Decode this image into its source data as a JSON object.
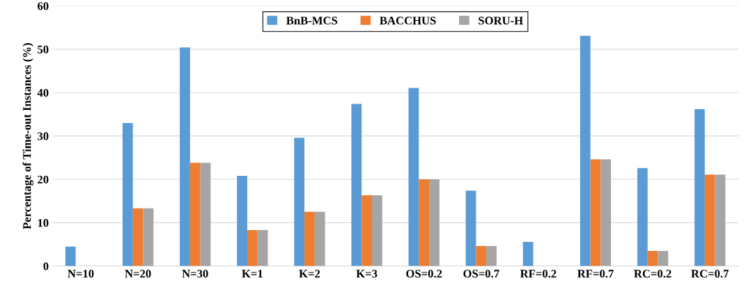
{
  "chart_data": {
    "type": "bar",
    "ylabel": "Percentage of Time-out Instances (%)",
    "categories": [
      "N=10",
      "N=20",
      "N=30",
      "K=1",
      "K=2",
      "K=3",
      "OS=0.2",
      "OS=0.7",
      "RF=0.2",
      "RF=0.7",
      "RC=0.2",
      "RC=0.7"
    ],
    "series": [
      {
        "name": "BnB-MCS",
        "color": "#5b9bd5",
        "values": [
          4.5,
          33.0,
          50.4,
          20.8,
          29.6,
          37.4,
          41.1,
          17.4,
          5.6,
          53.1,
          22.6,
          36.2
        ]
      },
      {
        "name": "BACCHUS",
        "color": "#ed7d31",
        "values": [
          0,
          13.3,
          23.8,
          8.3,
          12.5,
          16.3,
          20.0,
          4.6,
          0,
          24.6,
          3.5,
          21.1
        ]
      },
      {
        "name": "SORU-H",
        "color": "#a5a5a5",
        "values": [
          0,
          13.3,
          23.8,
          8.3,
          12.5,
          16.3,
          20.0,
          4.6,
          0,
          24.6,
          3.5,
          21.1
        ]
      }
    ],
    "ylim": [
      0,
      60
    ],
    "yticks": [
      0,
      10,
      20,
      30,
      40,
      50,
      60
    ],
    "grid": "y",
    "legend": "top"
  }
}
